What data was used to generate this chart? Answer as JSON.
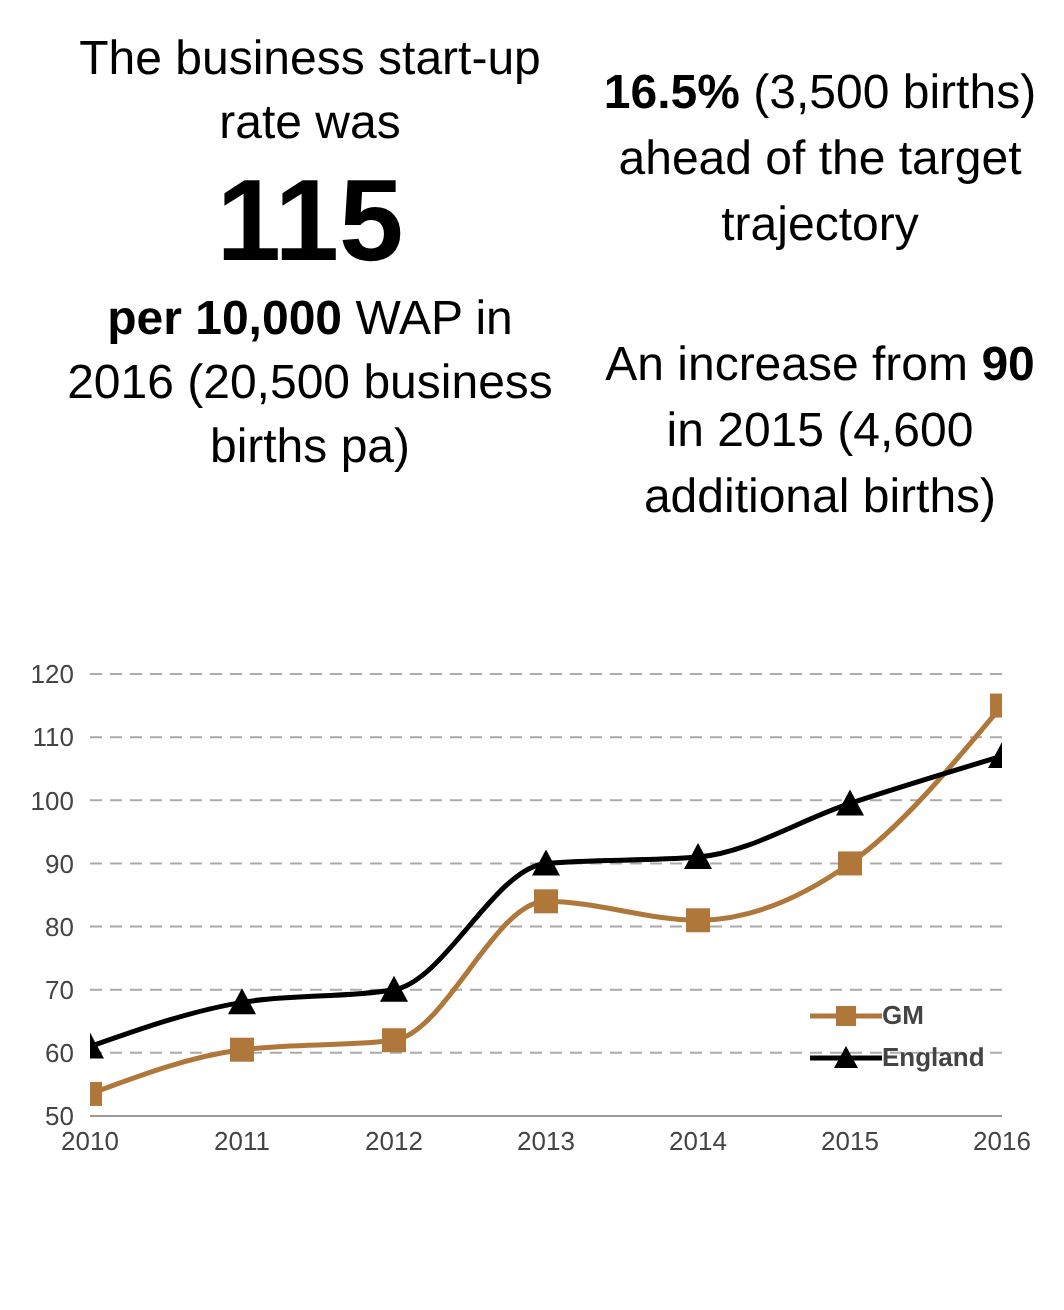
{
  "chart_data": {
    "type": "line",
    "annotations": [
      "The business start-up rate was",
      "115",
      "per 10,000",
      "WAP in 2016 (20,500 business births pa)",
      "16.5%",
      "(3,500 births) ahead of the target trajectory",
      "An increase from",
      "90",
      "in 2015 (4,600 additional births)"
    ],
    "categories": [
      "2010",
      "2011",
      "2012",
      "2013",
      "2014",
      "2015",
      "2016"
    ],
    "series": [
      {
        "name": "GM",
        "color": "#b0773b",
        "marker": "square",
        "values": [
          53.5,
          60.5,
          62,
          84,
          81,
          90,
          115
        ]
      },
      {
        "name": "England",
        "color": "#000000",
        "marker": "triangle",
        "values": [
          61,
          68,
          70,
          90,
          91,
          99.5,
          107
        ]
      }
    ],
    "ylim": [
      50,
      120
    ],
    "yticks": [
      50,
      60,
      70,
      80,
      90,
      100,
      110,
      120
    ],
    "grid": "y",
    "legend": "right",
    "line_style": "solid"
  }
}
